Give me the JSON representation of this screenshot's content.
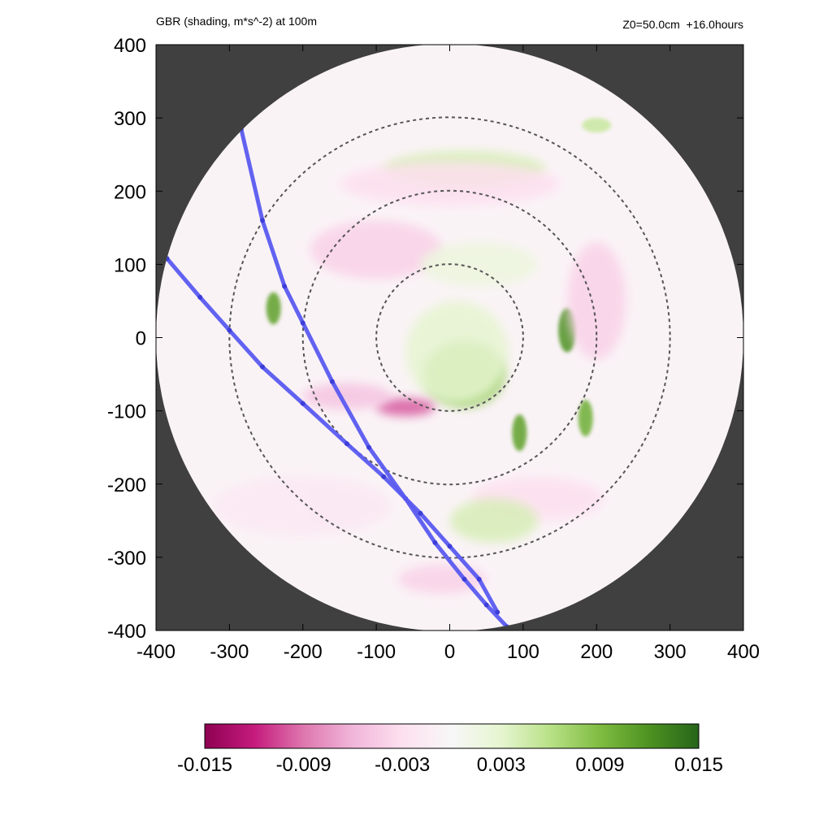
{
  "header": {
    "title_left": "GBR (shading, m*s^-2) at 100m",
    "title_right": "Z0=50.0cm  +16.0hours"
  },
  "chart_data": {
    "type": "heatmap",
    "title": "GBR (shading, m*s^-2) at 100m",
    "subtitle": "Z0=50.0cm  +16.0hours",
    "xlabel": "",
    "ylabel": "",
    "xlim": [
      -400,
      400
    ],
    "ylim": [
      -400,
      400
    ],
    "x_ticks": [
      -400,
      -300,
      -200,
      -100,
      0,
      100,
      200,
      300,
      400
    ],
    "y_ticks": [
      -400,
      -300,
      -200,
      -100,
      0,
      100,
      200,
      300,
      400
    ],
    "domain_radius": 400,
    "outside_domain_color": "#404040",
    "range_rings": [
      100,
      200,
      300
    ],
    "colorbar": {
      "min": -0.015,
      "max": 0.015,
      "tick_labels": [
        "-0.015",
        "-0.009",
        "-0.003",
        "0.003",
        "0.009",
        "0.015"
      ],
      "tick_values": [
        -0.015,
        -0.009,
        -0.003,
        0.003,
        0.009,
        0.015
      ],
      "colors": [
        "#8e0152",
        "#c51b7d",
        "#de77ae",
        "#f1b6da",
        "#fde0ef",
        "#f7f7f7",
        "#e6f5d0",
        "#b8e186",
        "#7fbc41",
        "#4d9221",
        "#276419"
      ]
    },
    "tracks": [
      {
        "color": "#5a5af0",
        "points": [
          [
            -284,
            285
          ],
          [
            -255,
            160
          ],
          [
            -225,
            70
          ],
          [
            -200,
            20
          ],
          [
            -160,
            -60
          ],
          [
            -110,
            -150
          ],
          [
            -60,
            -220
          ],
          [
            -20,
            -280
          ],
          [
            20,
            -330
          ],
          [
            50,
            -365
          ],
          [
            78,
            -395
          ]
        ]
      },
      {
        "color": "#5a5af0",
        "points": [
          [
            -385,
            108
          ],
          [
            -340,
            55
          ],
          [
            -300,
            10
          ],
          [
            -255,
            -40
          ],
          [
            -200,
            -90
          ],
          [
            -140,
            -145
          ],
          [
            -90,
            -190
          ],
          [
            -40,
            -240
          ],
          [
            0,
            -285
          ],
          [
            40,
            -330
          ],
          [
            65,
            -375
          ]
        ]
      }
    ],
    "features": [
      {
        "x": 20,
        "y": -50,
        "rx": 55,
        "ry": 45,
        "value": 0.008
      },
      {
        "x": 10,
        "y": -20,
        "rx": 70,
        "ry": 70,
        "value": 0.003
      },
      {
        "x": 160,
        "y": 10,
        "rx": 12,
        "ry": 30,
        "value": 0.012
      },
      {
        "x": 95,
        "y": -130,
        "rx": 10,
        "ry": 25,
        "value": 0.011
      },
      {
        "x": 185,
        "y": -110,
        "rx": 10,
        "ry": 25,
        "value": 0.01
      },
      {
        "x": -240,
        "y": 40,
        "rx": 10,
        "ry": 22,
        "value": 0.011
      },
      {
        "x": -60,
        "y": -95,
        "rx": 40,
        "ry": 12,
        "value": -0.01
      },
      {
        "x": -140,
        "y": -80,
        "rx": 60,
        "ry": 18,
        "value": -0.005
      },
      {
        "x": 200,
        "y": 50,
        "rx": 40,
        "ry": 80,
        "value": -0.004
      },
      {
        "x": -100,
        "y": 120,
        "rx": 90,
        "ry": 40,
        "value": -0.004
      },
      {
        "x": 20,
        "y": 230,
        "rx": 110,
        "ry": 25,
        "value": 0.004
      },
      {
        "x": 0,
        "y": 210,
        "rx": 150,
        "ry": 30,
        "value": -0.003
      },
      {
        "x": 120,
        "y": -220,
        "rx": 90,
        "ry": 30,
        "value": -0.003
      },
      {
        "x": 60,
        "y": -250,
        "rx": 60,
        "ry": 30,
        "value": 0.004
      },
      {
        "x": -200,
        "y": -230,
        "rx": 120,
        "ry": 40,
        "value": -0.002
      },
      {
        "x": 40,
        "y": 100,
        "rx": 80,
        "ry": 30,
        "value": 0.002
      },
      {
        "x": 200,
        "y": 290,
        "rx": 20,
        "ry": 10,
        "value": 0.005
      },
      {
        "x": -10,
        "y": -330,
        "rx": 60,
        "ry": 20,
        "value": -0.004
      }
    ]
  }
}
